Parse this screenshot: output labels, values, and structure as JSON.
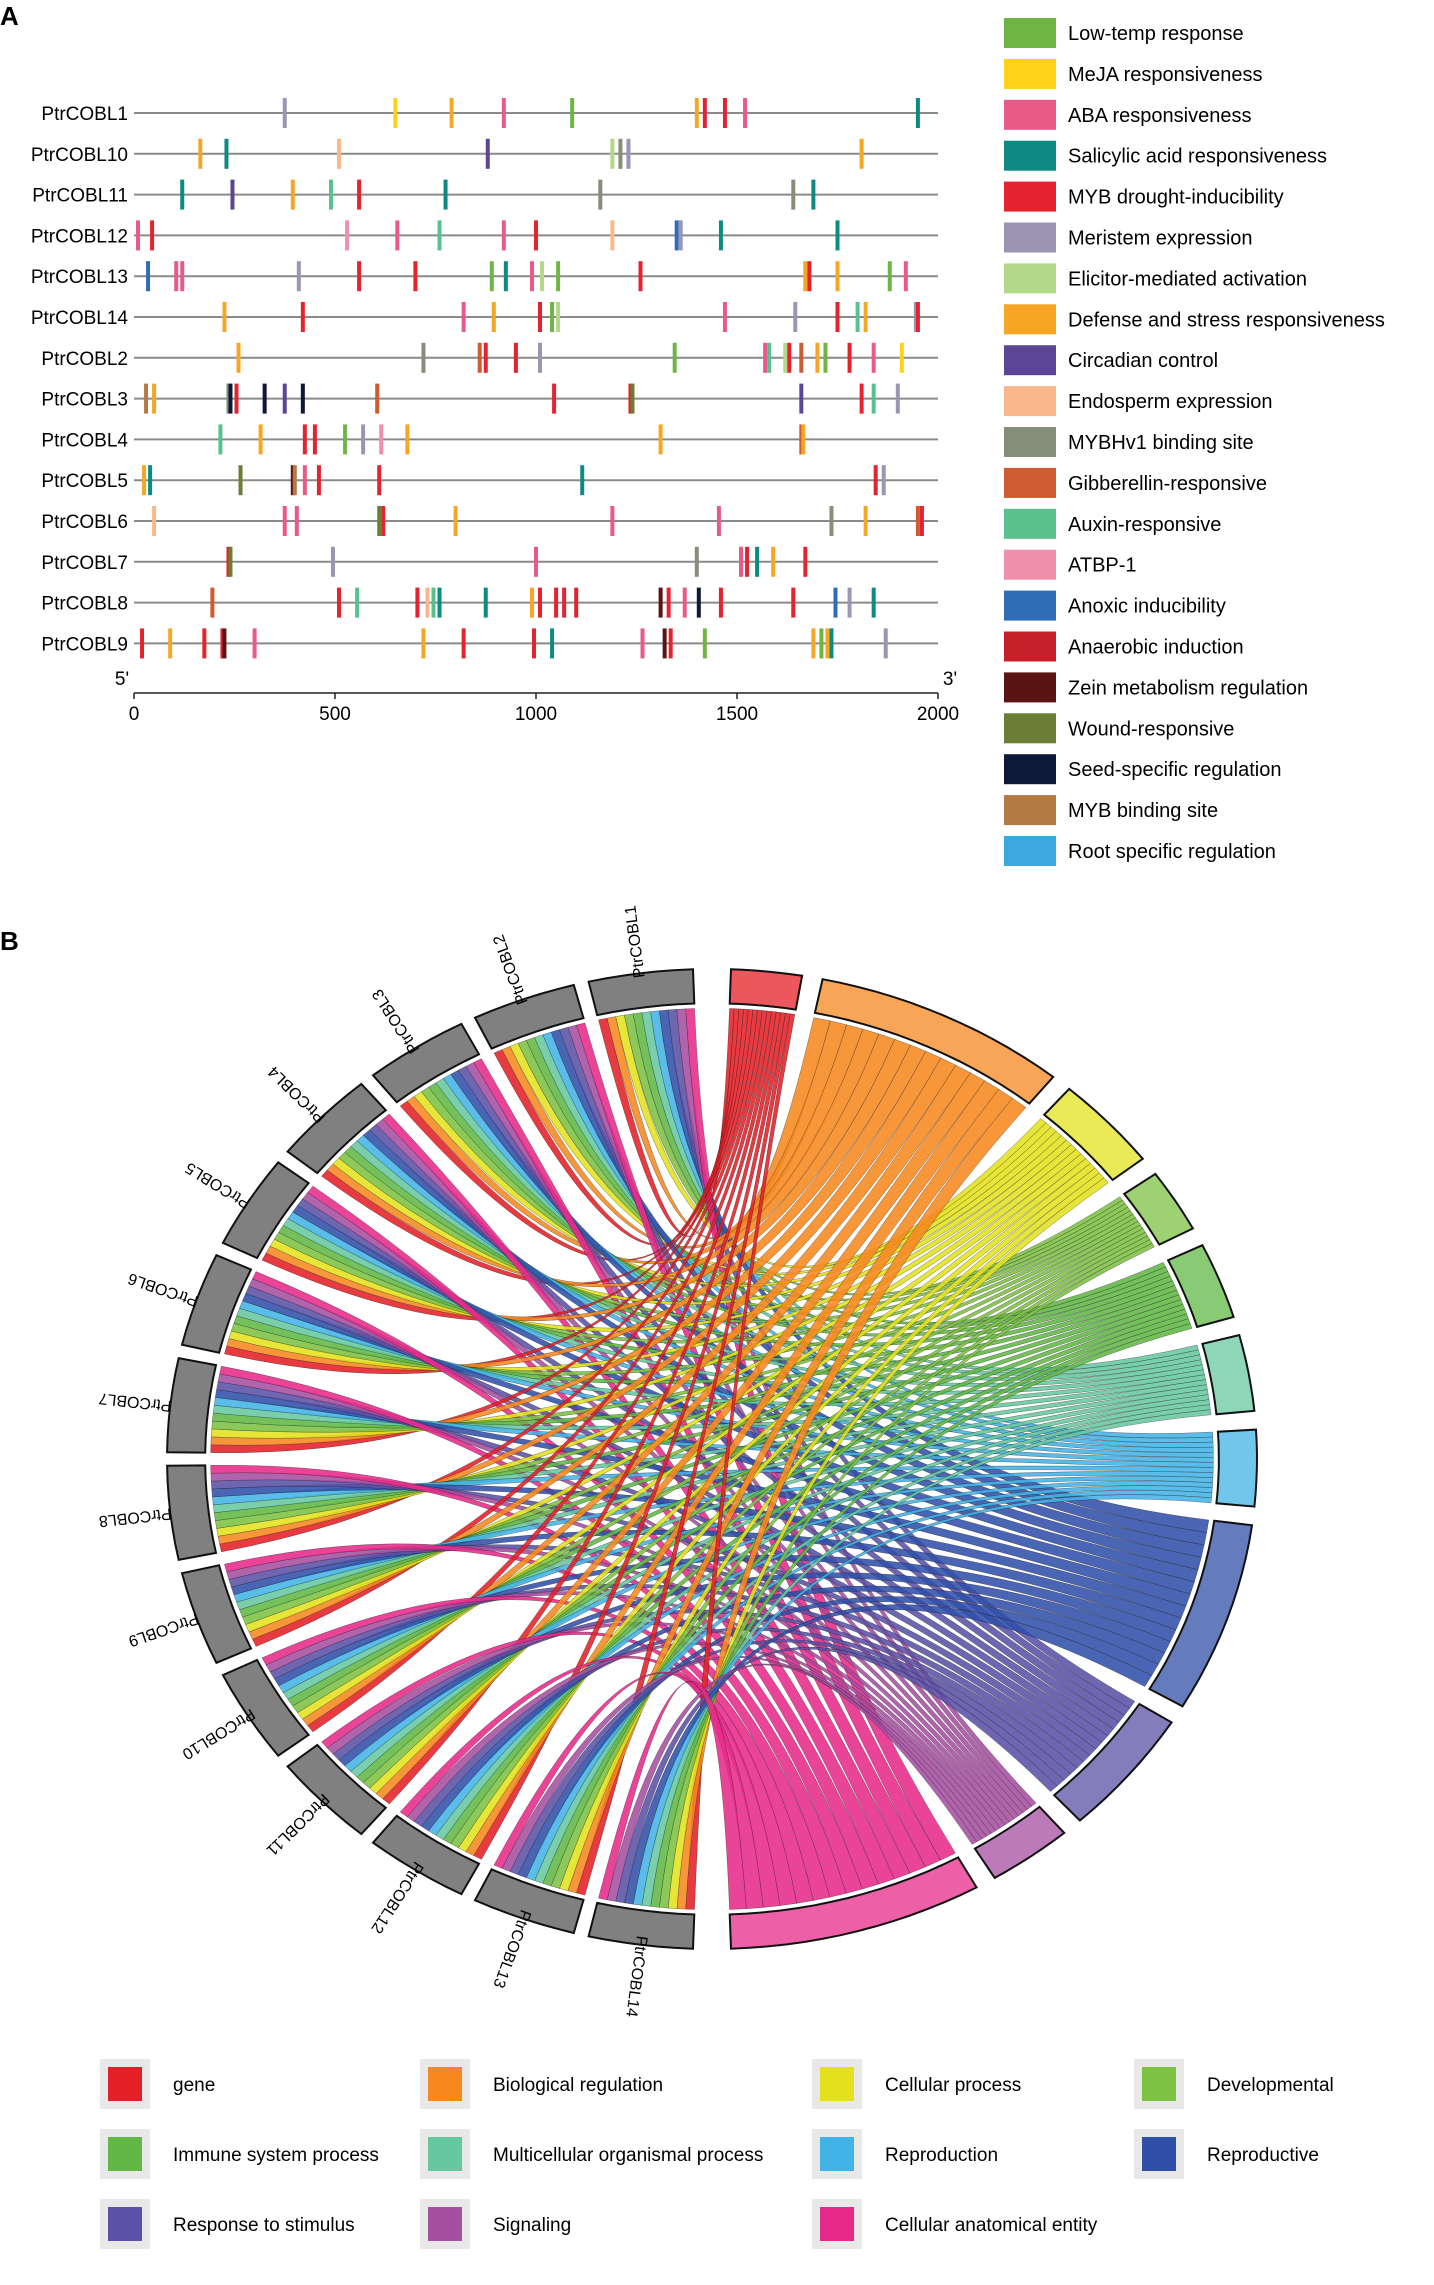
{
  "chart_data": [
    {
      "panel": "A",
      "type": "scatter",
      "title": "",
      "xlabel": "",
      "ylabel": "",
      "x_end_labels": [
        "5'",
        "3'"
      ],
      "xlim": [
        0,
        2000
      ],
      "xticks": [
        0,
        500,
        1000,
        1500,
        2000
      ],
      "genes": [
        "PtrCOBL1",
        "PtrCOBL10",
        "PtrCOBL11",
        "PtrCOBL12",
        "PtrCOBL13",
        "PtrCOBL14",
        "PtrCOBL2",
        "PtrCOBL3",
        "PtrCOBL4",
        "PtrCOBL5",
        "PtrCOBL6",
        "PtrCOBL7",
        "PtrCOBL8",
        "PtrCOBL9"
      ],
      "legend": [
        {
          "name": "Low-temp response",
          "color": "#6fb544"
        },
        {
          "name": "MeJA responsiveness",
          "color": "#ffd21a"
        },
        {
          "name": "ABA responsiveness",
          "color": "#e85a87"
        },
        {
          "name": "Salicylic acid responsiveness",
          "color": "#0d8b82"
        },
        {
          "name": "MYB drought-inducibility",
          "color": "#e42230"
        },
        {
          "name": "Meristem expression",
          "color": "#9b95b3"
        },
        {
          "name": "Elicitor-mediated activation",
          "color": "#b2d98a"
        },
        {
          "name": "Defense and stress responsiveness",
          "color": "#f6a623"
        },
        {
          "name": "Circadian control",
          "color": "#5c4594"
        },
        {
          "name": "Endosperm expression",
          "color": "#f9b88c"
        },
        {
          "name": "MYBHv1 binding site",
          "color": "#858e79"
        },
        {
          "name": "Gibberellin-responsive",
          "color": "#d05a31"
        },
        {
          "name": "Auxin-responsive",
          "color": "#59c08e"
        },
        {
          "name": "ATBP-1",
          "color": "#f08fab"
        },
        {
          "name": "Anoxic inducibility",
          "color": "#2f6bb6"
        },
        {
          "name": "Anaerobic induction",
          "color": "#c8202a"
        },
        {
          "name": "Zein metabolism regulation",
          "color": "#5b1414"
        },
        {
          "name": "Wound-responsive",
          "color": "#6a7f35"
        },
        {
          "name": "Seed-specific regulation",
          "color": "#0e1838"
        },
        {
          "name": "MYB binding site",
          "color": "#b47a46"
        },
        {
          "name": "Root specific regulation",
          "color": "#3aa9e0"
        }
      ],
      "elements": [
        [
          [
            375,
            5
          ],
          [
            650,
            1
          ],
          [
            790,
            7
          ],
          [
            920,
            2
          ],
          [
            1090,
            0
          ],
          [
            1400,
            7
          ],
          [
            1420,
            4
          ],
          [
            1470,
            4
          ],
          [
            1520,
            2
          ],
          [
            1950,
            3
          ]
        ],
        [
          [
            165,
            7
          ],
          [
            230,
            3
          ],
          [
            510,
            9
          ],
          [
            880,
            8
          ],
          [
            1190,
            6
          ],
          [
            1210,
            10
          ],
          [
            1230,
            5
          ],
          [
            1810,
            7
          ]
        ],
        [
          [
            120,
            3
          ],
          [
            245,
            8
          ],
          [
            395,
            7
          ],
          [
            490,
            12
          ],
          [
            560,
            4
          ],
          [
            775,
            3
          ],
          [
            1160,
            10
          ],
          [
            1640,
            10
          ],
          [
            1690,
            3
          ]
        ],
        [
          [
            10,
            2
          ],
          [
            45,
            4
          ],
          [
            530,
            13
          ],
          [
            655,
            2
          ],
          [
            760,
            12
          ],
          [
            920,
            2
          ],
          [
            1000,
            4
          ],
          [
            1190,
            9
          ],
          [
            1350,
            14
          ],
          [
            1360,
            5
          ],
          [
            1460,
            3
          ],
          [
            1750,
            3
          ]
        ],
        [
          [
            35,
            14
          ],
          [
            105,
            2
          ],
          [
            120,
            2
          ],
          [
            410,
            5
          ],
          [
            560,
            4
          ],
          [
            700,
            4
          ],
          [
            890,
            0
          ],
          [
            925,
            3
          ],
          [
            990,
            2
          ],
          [
            1015,
            6
          ],
          [
            1055,
            0
          ],
          [
            1260,
            4
          ],
          [
            1670,
            7
          ],
          [
            1680,
            4
          ],
          [
            1750,
            7
          ],
          [
            1880,
            0
          ],
          [
            1920,
            2
          ]
        ],
        [
          [
            225,
            7
          ],
          [
            420,
            4
          ],
          [
            820,
            2
          ],
          [
            895,
            7
          ],
          [
            1010,
            4
          ],
          [
            1040,
            0
          ],
          [
            1055,
            6
          ],
          [
            1470,
            2
          ],
          [
            1645,
            5
          ],
          [
            1750,
            4
          ],
          [
            1800,
            12
          ],
          [
            1820,
            7
          ],
          [
            1945,
            5
          ],
          [
            1950,
            4
          ]
        ],
        [
          [
            260,
            7
          ],
          [
            720,
            10
          ],
          [
            860,
            11
          ],
          [
            875,
            4
          ],
          [
            950,
            4
          ],
          [
            1010,
            5
          ],
          [
            1345,
            0
          ],
          [
            1570,
            2
          ],
          [
            1580,
            12
          ],
          [
            1620,
            6
          ],
          [
            1630,
            4
          ],
          [
            1660,
            11
          ],
          [
            1700,
            7
          ],
          [
            1720,
            0
          ],
          [
            1780,
            4
          ],
          [
            1840,
            2
          ],
          [
            1910,
            1
          ]
        ],
        [
          [
            30,
            19
          ],
          [
            50,
            7
          ],
          [
            235,
            10
          ],
          [
            240,
            18
          ],
          [
            255,
            4
          ],
          [
            325,
            18
          ],
          [
            375,
            8
          ],
          [
            420,
            18
          ],
          [
            605,
            11
          ],
          [
            1045,
            4
          ],
          [
            1235,
            4
          ],
          [
            1240,
            17
          ],
          [
            1660,
            8
          ],
          [
            1810,
            4
          ],
          [
            1840,
            12
          ],
          [
            1900,
            5
          ]
        ],
        [
          [
            215,
            12
          ],
          [
            315,
            7
          ],
          [
            425,
            4
          ],
          [
            450,
            4
          ],
          [
            525,
            0
          ],
          [
            570,
            5
          ],
          [
            615,
            13
          ],
          [
            680,
            7
          ],
          [
            1310,
            7
          ],
          [
            1660,
            11
          ],
          [
            1665,
            7
          ]
        ],
        [
          [
            25,
            7
          ],
          [
            40,
            3
          ],
          [
            265,
            17
          ],
          [
            395,
            16
          ],
          [
            400,
            19
          ],
          [
            425,
            2
          ],
          [
            460,
            4
          ],
          [
            610,
            4
          ],
          [
            1115,
            3
          ],
          [
            1845,
            4
          ],
          [
            1865,
            5
          ]
        ],
        [
          [
            50,
            9
          ],
          [
            375,
            2
          ],
          [
            405,
            2
          ],
          [
            610,
            17
          ],
          [
            620,
            4
          ],
          [
            800,
            7
          ],
          [
            1190,
            2
          ],
          [
            1455,
            2
          ],
          [
            1735,
            10
          ],
          [
            1820,
            7
          ],
          [
            1950,
            11
          ],
          [
            1960,
            4
          ]
        ],
        [
          [
            235,
            4
          ],
          [
            240,
            17
          ],
          [
            495,
            5
          ],
          [
            1000,
            2
          ],
          [
            1400,
            10
          ],
          [
            1510,
            2
          ],
          [
            1525,
            4
          ],
          [
            1550,
            3
          ],
          [
            1590,
            7
          ],
          [
            1670,
            4
          ]
        ],
        [
          [
            195,
            11
          ],
          [
            510,
            4
          ],
          [
            555,
            12
          ],
          [
            705,
            4
          ],
          [
            730,
            9
          ],
          [
            745,
            12
          ],
          [
            760,
            3
          ],
          [
            875,
            3
          ],
          [
            990,
            7
          ],
          [
            1010,
            4
          ],
          [
            1050,
            4
          ],
          [
            1070,
            4
          ],
          [
            1100,
            4
          ],
          [
            1310,
            16
          ],
          [
            1330,
            4
          ],
          [
            1370,
            2
          ],
          [
            1405,
            18
          ],
          [
            1460,
            4
          ],
          [
            1640,
            4
          ],
          [
            1745,
            14
          ],
          [
            1780,
            5
          ],
          [
            1840,
            3
          ]
        ],
        [
          [
            20,
            4
          ],
          [
            90,
            7
          ],
          [
            175,
            4
          ],
          [
            220,
            4
          ],
          [
            225,
            16
          ],
          [
            300,
            2
          ],
          [
            720,
            7
          ],
          [
            820,
            4
          ],
          [
            995,
            4
          ],
          [
            1040,
            3
          ],
          [
            1265,
            2
          ],
          [
            1320,
            16
          ],
          [
            1335,
            4
          ],
          [
            1420,
            0
          ],
          [
            1690,
            7
          ],
          [
            1710,
            0
          ],
          [
            1725,
            7
          ],
          [
            1735,
            3
          ],
          [
            1870,
            5
          ]
        ]
      ]
    },
    {
      "panel": "B",
      "type": "chord",
      "title": "",
      "genes": [
        "PtrCOBL1",
        "PtrCOBL2",
        "PtrCOBL3",
        "PtrCOBL4",
        "PtrCOBL5",
        "PtrCOBL6",
        "PtrCOBL7",
        "PtrCOBL8",
        "PtrCOBL9",
        "PtrCOBL10",
        "PtrCOBL11",
        "PtrCOBL12",
        "PtrCOBL13",
        "PtrCOBL14"
      ],
      "categories": [
        {
          "name": "gene",
          "color": "#e41f27"
        },
        {
          "name": "Biological regulation",
          "color": "#f7871f"
        },
        {
          "name": "Cellular process",
          "color": "#e3e11d"
        },
        {
          "name": "Developmental",
          "color": "#7dc242"
        },
        {
          "name": "Immune system process",
          "color": "#61b846"
        },
        {
          "name": "Multicellular organismal process",
          "color": "#67c8a0"
        },
        {
          "name": "Reproduction",
          "color": "#42b3e6"
        },
        {
          "name": "Reproductive",
          "color": "#3050a8"
        },
        {
          "name": "Response to stimulus",
          "color": "#5b51a6"
        },
        {
          "name": "Signaling",
          "color": "#a54fa0"
        },
        {
          "name": "Cellular anatomical entity",
          "color": "#e72a8a"
        }
      ],
      "legend_position": "bottom"
    }
  ],
  "panel_labels": {
    "a": "A",
    "b": "B"
  }
}
